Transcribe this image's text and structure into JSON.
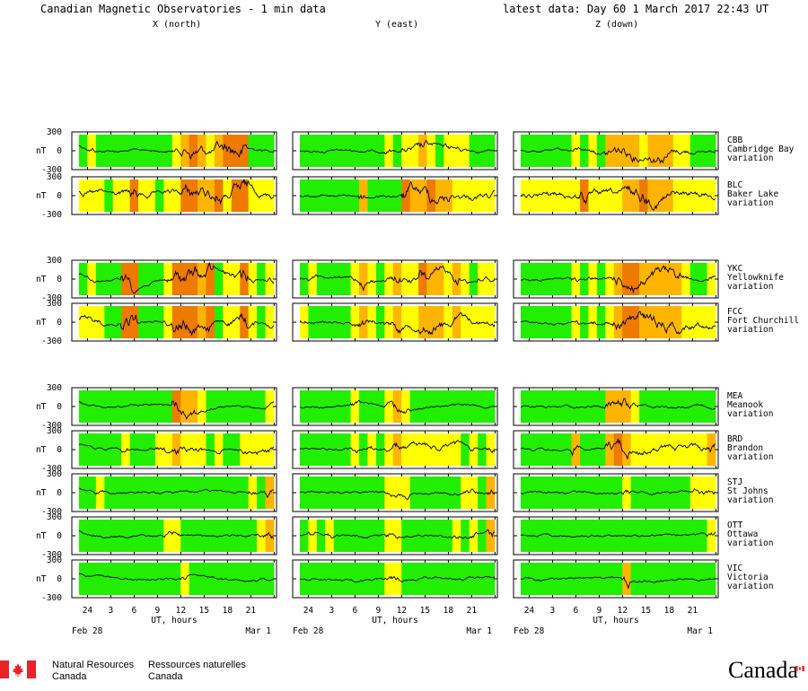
{
  "header": {
    "title": "Canadian Magnetic Observatories - 1 min data",
    "latest": "latest data: Day  60    1 March 2017 22:43 UT",
    "columns": [
      "X (north)",
      "Y (east)",
      "Z (down)"
    ]
  },
  "chart_data": {
    "type": "line",
    "title": "Canadian Magnetic Observatories - 1 min data",
    "xlabel": "UT, hours",
    "ylabel": "nT",
    "x_ticks": [
      "24",
      "3",
      "6",
      "9",
      "12",
      "15",
      "18",
      "21"
    ],
    "x_start_label": "Feb 28",
    "x_end_label": "Mar  1",
    "activity_colors": {
      "quiet": "#22ee00",
      "unsettled": "#ffff00",
      "active": "#ffb400",
      "storm": "#ee7a00"
    },
    "stations": [
      {
        "code": "CBB",
        "name": "Cambridge Bay",
        "kind": "variation",
        "yticks": [
          "300",
          "0",
          "-300"
        ],
        "bands": [
          [
            "G",
            "Y",
            "G",
            "G",
            "G",
            "G",
            "G",
            "G",
            "G",
            "G",
            "G",
            "Y",
            "A",
            "O",
            "A",
            "Y",
            "A",
            "O",
            "O",
            "O",
            "G",
            "G",
            "G"
          ],
          [
            "G",
            "G",
            "G",
            "G",
            "G",
            "G",
            "G",
            "G",
            "G",
            "G",
            "Y",
            "G",
            "Y",
            "Y",
            "A",
            "Y",
            "G",
            "Y",
            "Y",
            "Y",
            "G",
            "G",
            "G"
          ],
          [
            "G",
            "G",
            "G",
            "G",
            "G",
            "G",
            "Y",
            "G",
            "Y",
            "G",
            "A",
            "A",
            "A",
            "A",
            "Y",
            "A",
            "A",
            "A",
            "Y",
            "Y",
            "G",
            "G",
            "G"
          ]
        ]
      },
      {
        "code": "BLC",
        "name": "Baker Lake",
        "kind": "variation",
        "yticks": [
          "300",
          "0",
          "-300"
        ],
        "bands": [
          [
            "Y",
            "Y",
            "Y",
            "G",
            "Y",
            "Y",
            "O",
            "Y",
            "Y",
            "G",
            "Y",
            "Y",
            "O",
            "O",
            "A",
            "A",
            "O",
            "Y",
            "O",
            "O",
            "Y",
            "Y",
            "Y"
          ],
          [
            "G",
            "G",
            "G",
            "G",
            "G",
            "G",
            "G",
            "A",
            "G",
            "G",
            "G",
            "G",
            "O",
            "A",
            "A",
            "O",
            "A",
            "A",
            "Y",
            "Y",
            "Y",
            "Y",
            "Y"
          ],
          [
            "Y",
            "Y",
            "Y",
            "Y",
            "Y",
            "Y",
            "Y",
            "O",
            "Y",
            "Y",
            "Y",
            "Y",
            "A",
            "A",
            "O",
            "A",
            "A",
            "A",
            "Y",
            "Y",
            "Y",
            "Y",
            "Y"
          ]
        ]
      },
      {
        "code": "YKC",
        "name": "Yellowknife",
        "kind": "variation",
        "yticks": [
          "300",
          "0",
          "-300"
        ],
        "bands": [
          [
            "G",
            "Y",
            "G",
            "G",
            "G",
            "O",
            "O",
            "G",
            "G",
            "G",
            "Y",
            "O",
            "O",
            "O",
            "A",
            "O",
            "G",
            "Y",
            "Y",
            "O",
            "Y",
            "G",
            "Y"
          ],
          [
            "G",
            "Y",
            "G",
            "G",
            "G",
            "G",
            "Y",
            "A",
            "Y",
            "G",
            "Y",
            "A",
            "Y",
            "Y",
            "O",
            "A",
            "A",
            "Y",
            "A",
            "Y",
            "G",
            "Y",
            "Y"
          ],
          [
            "G",
            "G",
            "G",
            "G",
            "G",
            "G",
            "Y",
            "G",
            "Y",
            "G",
            "Y",
            "A",
            "O",
            "O",
            "A",
            "A",
            "A",
            "A",
            "A",
            "Y",
            "G",
            "G",
            "Y"
          ]
        ]
      },
      {
        "code": "FCC",
        "name": "Fort Churchill",
        "kind": "variation",
        "yticks": [
          "300",
          "0",
          "-300"
        ],
        "bands": [
          [
            "Y",
            "Y",
            "Y",
            "G",
            "G",
            "O",
            "O",
            "G",
            "G",
            "G",
            "Y",
            "O",
            "O",
            "O",
            "A",
            "O",
            "G",
            "Y",
            "Y",
            "O",
            "Y",
            "G",
            "Y"
          ],
          [
            "Y",
            "G",
            "G",
            "G",
            "G",
            "G",
            "Y",
            "A",
            "Y",
            "G",
            "Y",
            "A",
            "Y",
            "Y",
            "A",
            "A",
            "A",
            "Y",
            "A",
            "Y",
            "Y",
            "Y",
            "Y"
          ],
          [
            "G",
            "G",
            "G",
            "G",
            "G",
            "G",
            "Y",
            "G",
            "Y",
            "G",
            "Y",
            "A",
            "O",
            "O",
            "A",
            "A",
            "A",
            "A",
            "A",
            "Y",
            "Y",
            "Y",
            "Y"
          ]
        ]
      },
      {
        "code": "MEA",
        "name": "Meanook",
        "kind": "variation",
        "yticks": [
          "300",
          "0",
          "-300"
        ],
        "bands": [
          [
            "G",
            "G",
            "G",
            "G",
            "G",
            "G",
            "G",
            "G",
            "G",
            "G",
            "G",
            "O",
            "A",
            "A",
            "Y",
            "G",
            "G",
            "G",
            "G",
            "G",
            "G",
            "G",
            "Y"
          ],
          [
            "G",
            "G",
            "G",
            "G",
            "G",
            "G",
            "Y",
            "G",
            "G",
            "G",
            "Y",
            "A",
            "Y",
            "G",
            "G",
            "G",
            "G",
            "G",
            "G",
            "G",
            "G",
            "G",
            "G"
          ],
          [
            "G",
            "G",
            "G",
            "G",
            "G",
            "G",
            "G",
            "G",
            "G",
            "G",
            "A",
            "A",
            "A",
            "Y",
            "G",
            "G",
            "G",
            "G",
            "G",
            "G",
            "G",
            "G",
            "G"
          ]
        ]
      },
      {
        "code": "BRD",
        "name": "Brandon",
        "kind": "variation",
        "yticks": [
          "300",
          "0",
          "-300"
        ],
        "bands": [
          [
            "G",
            "G",
            "G",
            "G",
            "G",
            "Y",
            "G",
            "G",
            "G",
            "Y",
            "Y",
            "A",
            "Y",
            "Y",
            "Y",
            "G",
            "Y",
            "G",
            "G",
            "Y",
            "Y",
            "Y",
            "Y"
          ],
          [
            "G",
            "G",
            "G",
            "G",
            "G",
            "G",
            "Y",
            "G",
            "Y",
            "G",
            "Y",
            "A",
            "Y",
            "Y",
            "Y",
            "Y",
            "Y",
            "Y",
            "Y",
            "G",
            "Y",
            "G",
            "Y"
          ],
          [
            "G",
            "G",
            "G",
            "G",
            "G",
            "G",
            "A",
            "G",
            "G",
            "G",
            "A",
            "O",
            "A",
            "Y",
            "Y",
            "Y",
            "Y",
            "Y",
            "Y",
            "Y",
            "Y",
            "Y",
            "A"
          ]
        ]
      },
      {
        "code": "STJ",
        "name": "St Johns",
        "kind": "variation",
        "yticks": [
          "300",
          "0",
          "-300"
        ],
        "bands": [
          [
            "G",
            "G",
            "Y",
            "G",
            "G",
            "G",
            "G",
            "G",
            "G",
            "G",
            "G",
            "G",
            "G",
            "G",
            "G",
            "G",
            "G",
            "G",
            "G",
            "G",
            "Y",
            "G",
            "A"
          ],
          [
            "G",
            "G",
            "G",
            "G",
            "G",
            "G",
            "G",
            "G",
            "G",
            "G",
            "Y",
            "Y",
            "Y",
            "G",
            "G",
            "G",
            "G",
            "G",
            "G",
            "Y",
            "Y",
            "G",
            "A"
          ],
          [
            "G",
            "G",
            "G",
            "G",
            "G",
            "G",
            "G",
            "G",
            "G",
            "G",
            "G",
            "G",
            "Y",
            "G",
            "G",
            "G",
            "G",
            "G",
            "G",
            "G",
            "Y",
            "Y",
            "Y"
          ]
        ]
      },
      {
        "code": "OTT",
        "name": "Ottawa",
        "kind": "variation",
        "yticks": [
          "300",
          "0",
          "-300"
        ],
        "bands": [
          [
            "G",
            "G",
            "G",
            "G",
            "G",
            "G",
            "G",
            "G",
            "G",
            "G",
            "Y",
            "Y",
            "G",
            "G",
            "G",
            "G",
            "G",
            "G",
            "G",
            "G",
            "G",
            "Y",
            "A"
          ],
          [
            "G",
            "Y",
            "G",
            "Y",
            "G",
            "G",
            "G",
            "G",
            "G",
            "G",
            "Y",
            "Y",
            "G",
            "G",
            "G",
            "G",
            "G",
            "G",
            "Y",
            "G",
            "Y",
            "G",
            "A"
          ],
          [
            "G",
            "G",
            "G",
            "G",
            "G",
            "G",
            "G",
            "G",
            "G",
            "G",
            "G",
            "G",
            "G",
            "G",
            "G",
            "G",
            "G",
            "G",
            "G",
            "G",
            "G",
            "G",
            "Y"
          ]
        ]
      },
      {
        "code": "VIC",
        "name": "Victoria",
        "kind": "variation",
        "yticks": [
          "300",
          "0",
          "-300"
        ],
        "bands": [
          [
            "G",
            "G",
            "G",
            "G",
            "G",
            "G",
            "G",
            "G",
            "G",
            "G",
            "G",
            "G",
            "Y",
            "G",
            "G",
            "G",
            "G",
            "G",
            "G",
            "G",
            "G",
            "G",
            "G"
          ],
          [
            "G",
            "G",
            "G",
            "G",
            "G",
            "G",
            "G",
            "G",
            "G",
            "G",
            "Y",
            "Y",
            "G",
            "G",
            "G",
            "G",
            "G",
            "G",
            "G",
            "G",
            "G",
            "G",
            "G"
          ],
          [
            "G",
            "G",
            "G",
            "G",
            "G",
            "G",
            "G",
            "G",
            "G",
            "G",
            "G",
            "G",
            "A",
            "G",
            "G",
            "G",
            "G",
            "G",
            "G",
            "G",
            "G",
            "G",
            "G"
          ]
        ]
      }
    ]
  },
  "footer": {
    "nrcan_en_1": "Natural Resources",
    "nrcan_en_2": "Canada",
    "nrcan_fr_1": "Ressources naturelles",
    "nrcan_fr_2": "Canada",
    "wordmark": "Canada",
    "flag_color": "#e8232a"
  }
}
